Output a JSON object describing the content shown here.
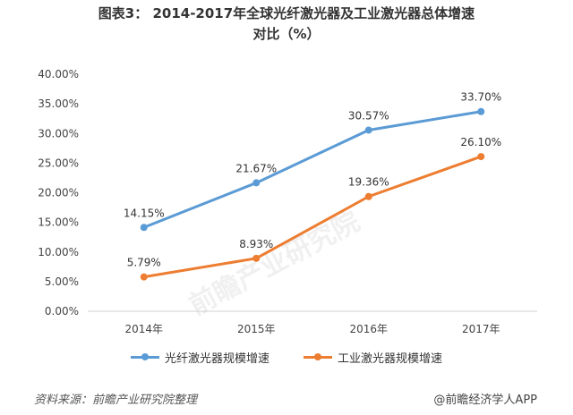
{
  "title_line1": "图表3： 2014-2017年全球光纤激光器及工业激光器总体增速",
  "title_line2": "对比（%）",
  "source": "资料来源：前瞻产业研究院整理",
  "credit": "@前瞻经济学人APP",
  "watermark_text": "前瞻产业研究院",
  "chart_data": {
    "type": "line",
    "categories": [
      "2014年",
      "2015年",
      "2016年",
      "2017年"
    ],
    "y_ticks": [
      "0.00%",
      "5.00%",
      "10.00%",
      "15.00%",
      "20.00%",
      "25.00%",
      "30.00%",
      "35.00%",
      "40.00%"
    ],
    "ylim": [
      0,
      40
    ],
    "grid": false,
    "legend_position": "bottom",
    "series": [
      {
        "name": "光纤激光器规模增速",
        "color": "#5b9bd5",
        "values": [
          14.15,
          21.67,
          30.57,
          33.7
        ],
        "labels": [
          "14.15%",
          "21.67%",
          "30.57%",
          "33.70%"
        ]
      },
      {
        "name": "工业激光器规模增速",
        "color": "#ed7d31",
        "values": [
          5.79,
          8.93,
          19.36,
          26.1
        ],
        "labels": [
          "5.79%",
          "8.93%",
          "19.36%",
          "26.10%"
        ]
      }
    ]
  }
}
